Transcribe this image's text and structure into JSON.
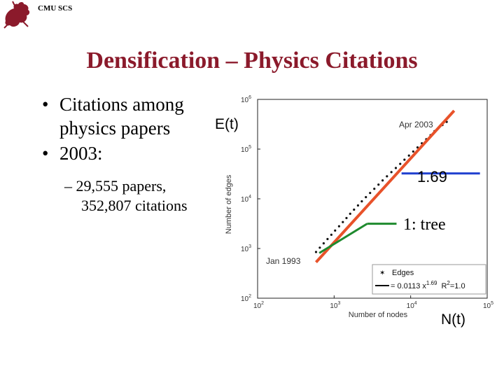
{
  "header": {
    "org": "CMU SCS"
  },
  "title": "Densification – Physics Citations",
  "bullets": [
    {
      "lines": [
        "Citations among",
        "physics papers"
      ]
    },
    {
      "lines": [
        "2003:"
      ]
    }
  ],
  "sub_bullet": {
    "lines": [
      "– 29,555 papers,",
      "352,807 citations"
    ]
  },
  "annotations": {
    "et": "E(t)",
    "nt": "N(t)",
    "slope": "1.69",
    "tree": "1: tree"
  },
  "colors": {
    "title": "#8b1a2b",
    "fit_line": "#e8522a",
    "slope_line": "#1f3fcf",
    "tree_line": "#1e8a2e"
  },
  "chart_data": {
    "type": "scatter",
    "xscale": "log",
    "yscale": "log",
    "xlim": [
      100,
      100000
    ],
    "ylim": [
      100,
      1000000
    ],
    "xticks": [
      {
        "base": "10",
        "exp": "2"
      },
      {
        "base": "10",
        "exp": "3"
      },
      {
        "base": "10",
        "exp": "4"
      },
      {
        "base": "10",
        "exp": "5"
      }
    ],
    "yticks": [
      {
        "base": "10",
        "exp": "2"
      },
      {
        "base": "10",
        "exp": "3"
      },
      {
        "base": "10",
        "exp": "4"
      },
      {
        "base": "10",
        "exp": "5"
      },
      {
        "base": "10",
        "exp": "6"
      }
    ],
    "xlabel": "Number of nodes",
    "ylabel": "Number of edges",
    "grid": false,
    "legend_position": "bottom-right",
    "legend": {
      "marker_label": "Edges",
      "fit_prefix": "= 0.0113 x",
      "fit_exp": "1.69",
      "fit_suffix": "R",
      "r2_exp": "2",
      "r2_value": "=1.0"
    },
    "annotations": {
      "start": "Jan 1993",
      "end": "Apr 2003"
    },
    "series": [
      {
        "name": "Edges",
        "x": [
          580,
          650,
          730,
          820,
          920,
          1030,
          1160,
          1300,
          1450,
          1620,
          1820,
          2050,
          2300,
          2600,
          2950,
          3350,
          3800,
          4300,
          4900,
          5600,
          6400,
          7300,
          8300,
          9500,
          10800,
          12300,
          14000,
          16000,
          18200,
          20500,
          23000,
          26000,
          29555
        ],
        "y": [
          850,
          1040,
          1270,
          1550,
          1890,
          2300,
          2800,
          3400,
          4100,
          5000,
          6050,
          7350,
          8900,
          10800,
          13100,
          15900,
          19300,
          23400,
          28400,
          34400,
          41700,
          50500,
          61200,
          74000,
          89500,
          108000,
          131000,
          158000,
          191000,
          230000,
          262000,
          305000,
          352807
        ]
      }
    ],
    "fit": {
      "coef": 0.0113,
      "exp": 1.69,
      "x_from": 580,
      "x_to": 37000
    }
  }
}
